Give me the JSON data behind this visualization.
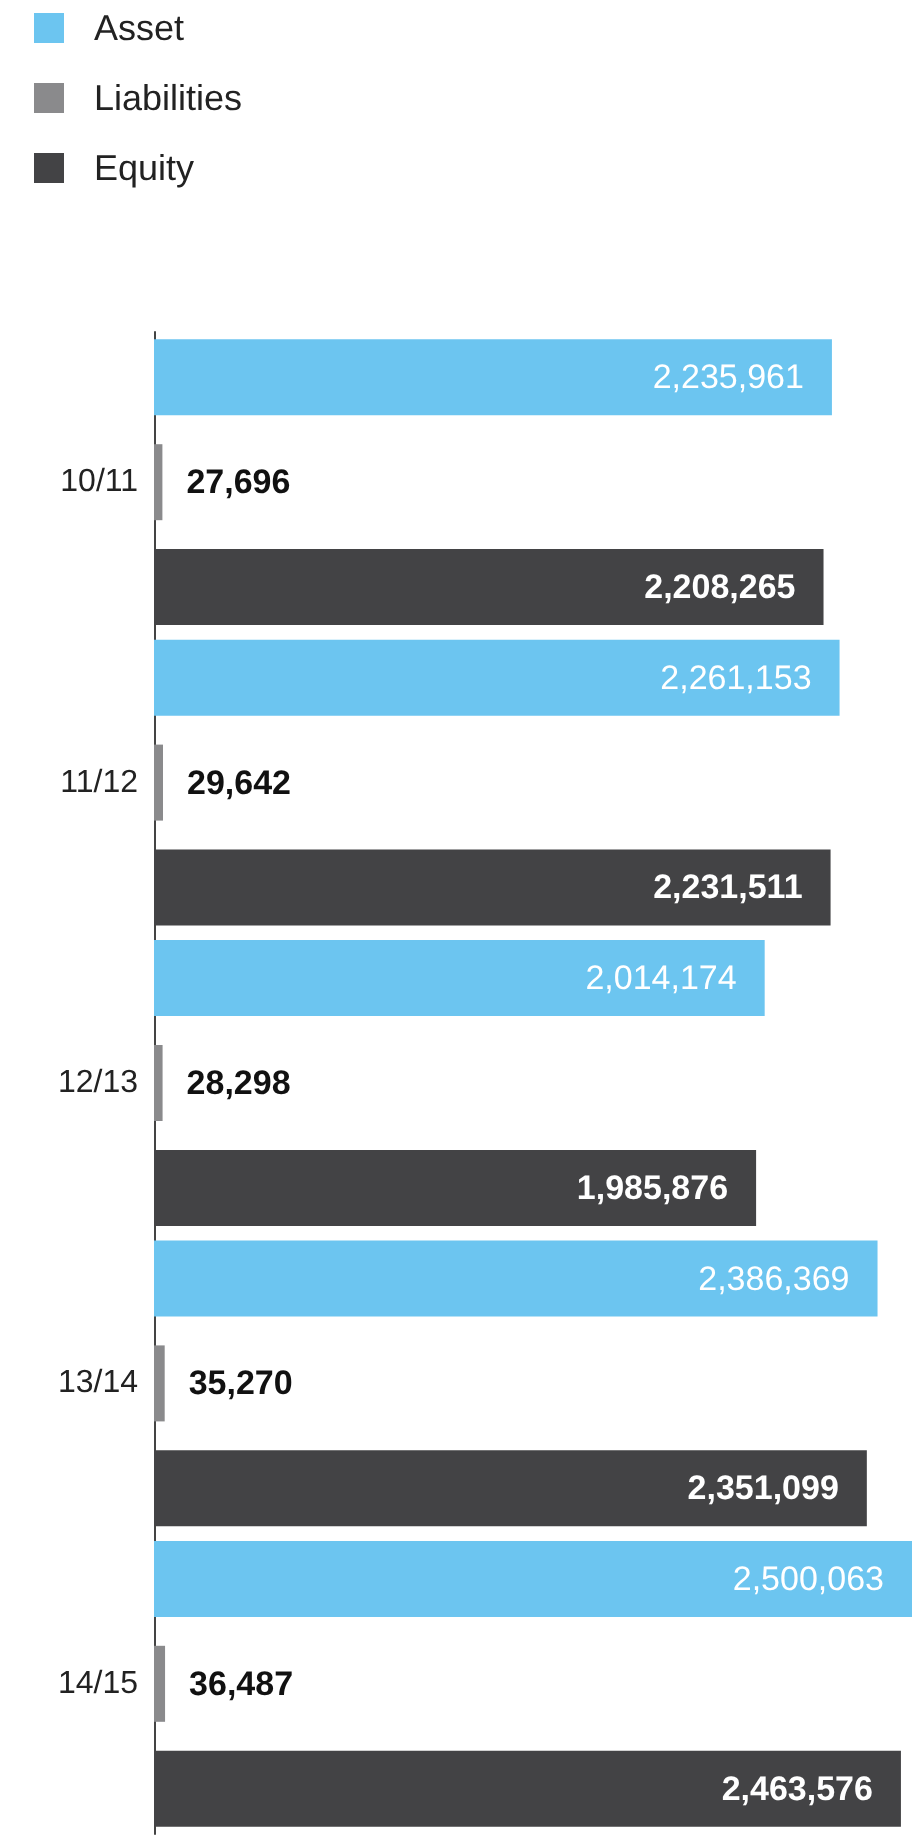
{
  "chart_data": {
    "type": "bar",
    "orientation": "horizontal",
    "categories": [
      "10/11",
      "11/12",
      "12/13",
      "13/14",
      "14/15"
    ],
    "series": [
      {
        "name": "Asset",
        "color": "#6cc5f0",
        "values": [
          2235961,
          2261153,
          2014174,
          2386369,
          2500063
        ],
        "value_labels": [
          "2,235,961",
          "2,261,153",
          "2,014,174",
          "2,386,369",
          "2,500,063"
        ]
      },
      {
        "name": "Liabilities",
        "color": "#8a8a8c",
        "values": [
          27696,
          29642,
          28298,
          35270,
          36487
        ],
        "value_labels": [
          "27,696",
          "29,642",
          "28,298",
          "35,270",
          "36,487"
        ]
      },
      {
        "name": "Equity",
        "color": "#434345",
        "values": [
          2208265,
          2231511,
          1985876,
          2351099,
          2463576
        ],
        "value_labels": [
          "2,208,265",
          "2,231,511",
          "1,985,876",
          "2,351,099",
          "2,463,576"
        ]
      }
    ],
    "legend": "top left",
    "tick_labels": "y"
  }
}
